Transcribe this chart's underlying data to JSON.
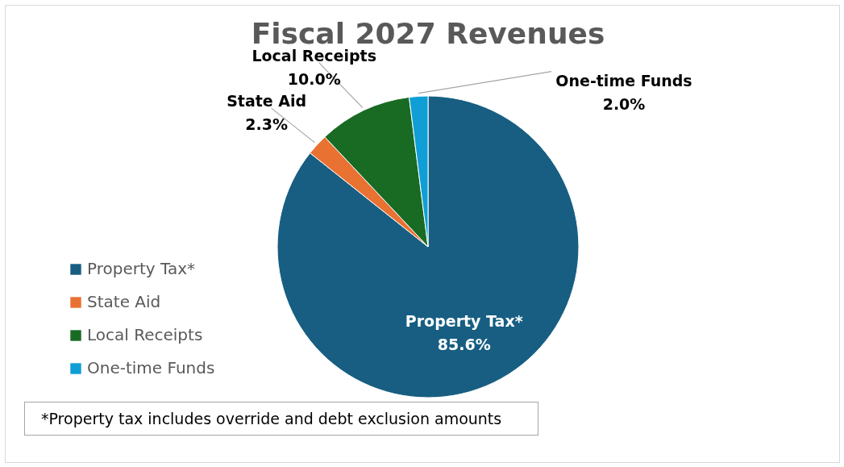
{
  "chart_data": {
    "type": "pie",
    "title": "Fiscal 2027 Revenues",
    "categories": [
      "Property Tax*",
      "State Aid",
      "Local Receipts",
      "One-time Funds"
    ],
    "values": [
      85.6,
      2.3,
      10.0,
      2.0
    ],
    "colors": [
      "#175e82",
      "#e97132",
      "#196b24",
      "#0f9ed5"
    ],
    "value_labels": [
      "85.6%",
      "2.3%",
      "10.0%",
      "2.0%"
    ],
    "legend": "left",
    "annotations": [
      "*Property tax includes override and debt exclusion amounts"
    ]
  }
}
